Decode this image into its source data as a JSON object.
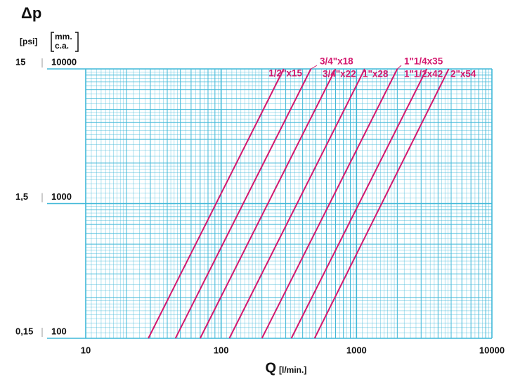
{
  "chart_data": {
    "type": "line",
    "title": "Δp",
    "x_label": "Q",
    "x_unit": "[l/min.]",
    "y_label": [
      "mm.",
      "c.a."
    ],
    "y2_label": "[psi]",
    "log_x": true,
    "log_y": true,
    "grid": true,
    "color": "#d3186e",
    "grid_color": "#3fb8d8",
    "xlim": [
      10,
      10000
    ],
    "xticks": [
      10,
      100,
      1000,
      10000
    ],
    "ylim": [
      100,
      10000
    ],
    "yticks": [
      100,
      1000,
      10000
    ],
    "y2lim": [
      0.15,
      15
    ],
    "y2ticks": [
      {
        "value": 0.15,
        "label": "0,15"
      },
      {
        "value": 1.5,
        "label": "1,5"
      },
      15
    ],
    "series": [
      {
        "name": "1/2\"x15",
        "x": [
          29,
          290
        ],
        "values": [
          100,
          10000
        ]
      },
      {
        "name": "3/4\"x18",
        "x": [
          46,
          460
        ],
        "values": [
          100,
          10000
        ]
      },
      {
        "name": "3/4\"x22",
        "x": [
          70,
          700
        ],
        "values": [
          100,
          10000
        ]
      },
      {
        "name": "1\"x28",
        "x": [
          115,
          1150
        ],
        "values": [
          100,
          10000
        ]
      },
      {
        "name": "1\"1/4x35",
        "x": [
          200,
          2000
        ],
        "values": [
          100,
          10000
        ]
      },
      {
        "name": "1\"1/2x42",
        "x": [
          330,
          3300
        ],
        "values": [
          100,
          10000
        ]
      },
      {
        "name": "2\"x54",
        "x": [
          490,
          4800
        ],
        "values": [
          100,
          10000
        ]
      }
    ]
  }
}
